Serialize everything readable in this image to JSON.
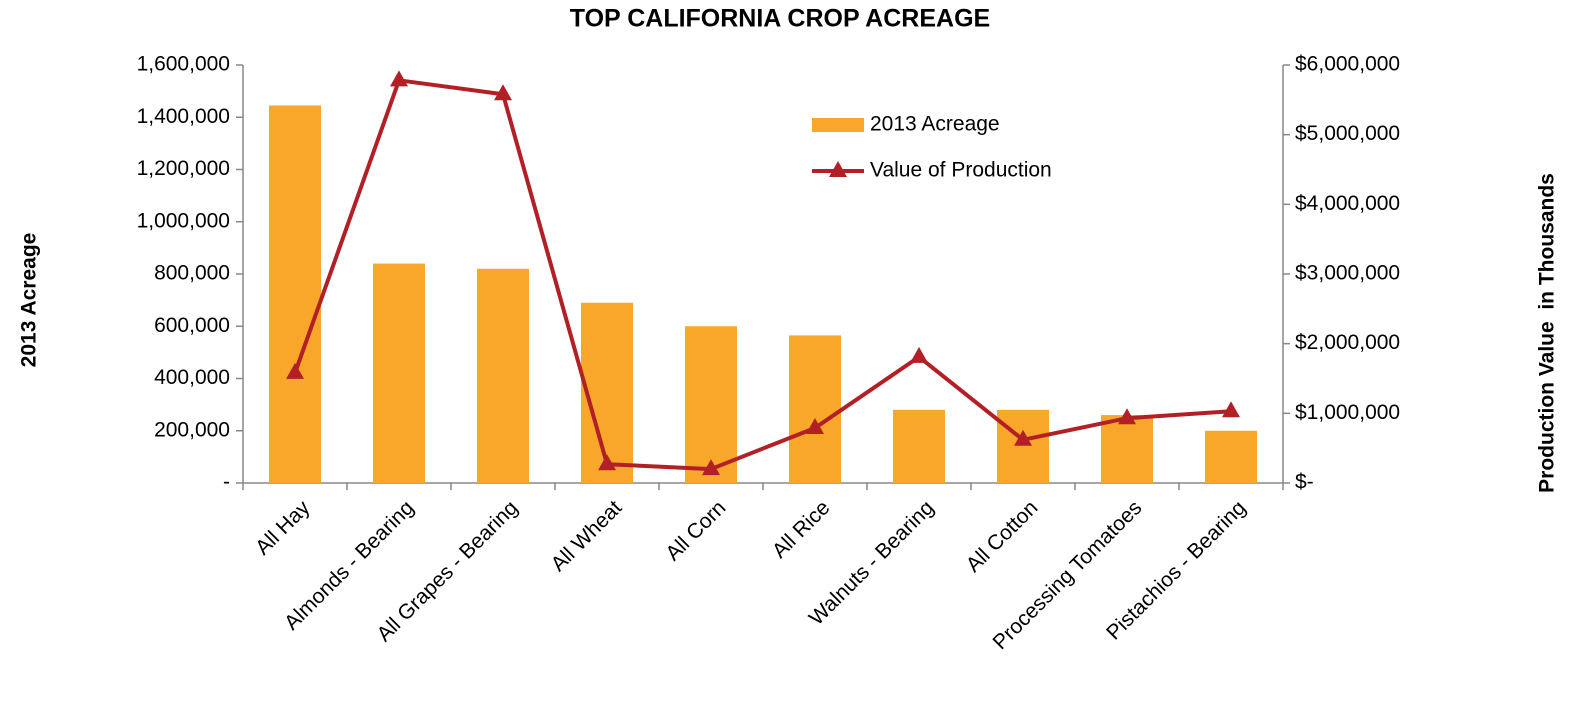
{
  "chart_data": {
    "type": "bar",
    "title": "TOP CALIFORNIA CROP ACREAGE",
    "y_label": "2013 Acreage",
    "y2_label": "Production Value  in Thousands",
    "categories": [
      "All Hay",
      "Almonds - Bearing",
      "All Grapes - Bearing",
      "All Wheat",
      "All Corn",
      "All Rice",
      "Walnuts - Bearing",
      "All Cotton",
      "Processing Tomatoes",
      "Pistachios - Bearing"
    ],
    "series": [
      {
        "name": "2013 Acreage",
        "type": "bar",
        "color": "#f9a72b",
        "values": [
          1445000,
          840000,
          820000,
          690000,
          600000,
          565000,
          280000,
          280000,
          260000,
          200000
        ]
      },
      {
        "name": "Value of Production",
        "type": "line",
        "axis": "y2",
        "color": "#b22025",
        "marker": "triangle",
        "values": [
          1580000,
          5780000,
          5580000,
          270000,
          200000,
          790000,
          1810000,
          620000,
          930000,
          1030000
        ]
      }
    ],
    "ylim": [
      0,
      1600000
    ],
    "yticks": [
      {
        "value": 0,
        "label": "-"
      },
      {
        "value": 200000,
        "label": "200,000"
      },
      {
        "value": 400000,
        "label": "400,000"
      },
      {
        "value": 600000,
        "label": "600,000"
      },
      {
        "value": 800000,
        "label": "800,000"
      },
      {
        "value": 1000000,
        "label": "1,000,000"
      },
      {
        "value": 1200000,
        "label": "1,200,000"
      },
      {
        "value": 1400000,
        "label": "1,400,000"
      },
      {
        "value": 1600000,
        "label": "1,600,000"
      }
    ],
    "y2lim": [
      0,
      6000000
    ],
    "y2ticks": [
      {
        "value": 0,
        "label": "$-"
      },
      {
        "value": 1000000,
        "label": "$1,000,000"
      },
      {
        "value": 2000000,
        "label": "$2,000,000"
      },
      {
        "value": 3000000,
        "label": "$3,000,000"
      },
      {
        "value": 4000000,
        "label": "$4,000,000"
      },
      {
        "value": 5000000,
        "label": "$5,000,000"
      },
      {
        "value": 6000000,
        "label": "$6,000,000"
      }
    ],
    "grid": false,
    "legend": "top-right"
  }
}
